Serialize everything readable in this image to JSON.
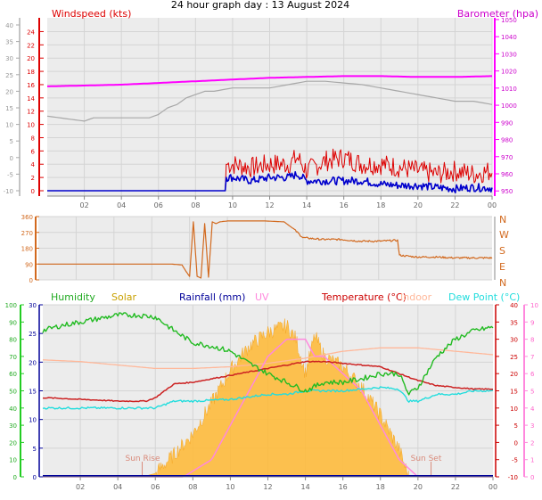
{
  "title": "24 hour graph day : 13 August 2024",
  "colors": {
    "wind": "#dd0000",
    "gust": "#0000cc",
    "baro": "#ff00ff",
    "temp_grey": "#a8a8a8",
    "dir": "#d2691e",
    "humidity": "#22bb22",
    "solar": "#ffb833",
    "rain": "#000099",
    "uv": "#ff88dd",
    "temperature": "#cc2222",
    "indoor": "#ffb89a",
    "dewpoint": "#22dddd",
    "axis": "#888888",
    "bg": "#ececec"
  },
  "chart_data": [
    {
      "type": "line",
      "labels": {
        "left": "Windspeed (kts)",
        "right": "Barometer (hpa)"
      },
      "x_ticks": [
        "02",
        "04",
        "06",
        "08",
        "10",
        "12",
        "14",
        "16",
        "18",
        "20",
        "22",
        "00"
      ],
      "x_range_hours": [
        0,
        24
      ],
      "y_left_ticks": [
        0,
        2,
        4,
        6,
        8,
        10,
        12,
        14,
        16,
        18,
        20,
        22,
        24
      ],
      "y_left_range": [
        0,
        25
      ],
      "y_right_ticks": [
        950,
        960,
        970,
        980,
        990,
        1000,
        1010,
        1020,
        1030,
        1040,
        1050
      ],
      "y_right_range": [
        947,
        1051
      ],
      "y_far_left_ticks": [
        -10,
        -5,
        0,
        5,
        10,
        15,
        20,
        25,
        30,
        35,
        40
      ],
      "series": [
        {
          "name": "Barometer (hpa)",
          "axis": "right",
          "x": [
            0,
            2,
            4,
            6,
            8,
            9,
            10,
            12,
            14,
            16,
            18,
            20,
            22,
            24
          ],
          "y": [
            1011,
            1011.5,
            1012,
            1013,
            1014,
            1014.5,
            1015,
            1016,
            1016.5,
            1017,
            1017,
            1016.5,
            1016.5,
            1017
          ]
        },
        {
          "name": "",
          "axis": "far_left",
          "x": [
            0,
            2,
            2.5,
            4,
            5.5,
            6,
            6.5,
            7,
            7.5,
            8,
            8.5,
            9,
            10,
            11,
            12,
            13,
            14,
            15,
            16,
            17,
            18,
            19,
            20,
            21,
            22,
            23,
            24
          ],
          "y": [
            12.5,
            11,
            12,
            12,
            12,
            13,
            15,
            16,
            18,
            19,
            20,
            20,
            21,
            21,
            21,
            22,
            23,
            23,
            22.5,
            22,
            21,
            20,
            19,
            18,
            17,
            17,
            16
          ]
        },
        {
          "name": "Windspeed (kts)",
          "axis": "left",
          "x": [
            0,
            9.6,
            9.65,
            10,
            11,
            12,
            13,
            13.5,
            14,
            15,
            16,
            17,
            18,
            19,
            20,
            21,
            22,
            23,
            24
          ],
          "y": [
            0,
            0,
            4,
            4,
            3.5,
            4,
            4,
            5,
            3,
            4.5,
            5,
            4,
            4,
            3.5,
            3,
            2.5,
            3,
            2.5,
            3
          ]
        },
        {
          "name": "",
          "axis": "left",
          "x": [
            0,
            9.6,
            9.65,
            10,
            11,
            12,
            13,
            13.5,
            14,
            15,
            16,
            17,
            18,
            19,
            20,
            21,
            22,
            23,
            24
          ],
          "y": [
            0,
            0,
            2,
            2,
            1.5,
            2,
            2,
            2.5,
            1.5,
            1.5,
            1.5,
            1.5,
            1,
            0.8,
            0.8,
            0.5,
            0.3,
            0.5,
            0.4
          ]
        }
      ]
    },
    {
      "type": "line",
      "x_range_hours": [
        0,
        24
      ],
      "y_ticks": [
        0,
        90,
        180,
        270,
        360
      ],
      "y_range": [
        0,
        360
      ],
      "compass_labels": [
        "N",
        "W",
        "S",
        "E",
        "N"
      ],
      "series": [
        {
          "name": "",
          "x": [
            0,
            6,
            7,
            7.6,
            7.8,
            8,
            8.2,
            8.4,
            8.6,
            8.8,
            9,
            9.2,
            9.4,
            9.6,
            10,
            11,
            12,
            13,
            13.5,
            14,
            15,
            16,
            17,
            18,
            19,
            19.1,
            20,
            21,
            22,
            23,
            24
          ],
          "y": [
            90,
            90,
            90,
            85,
            50,
            20,
            330,
            20,
            10,
            320,
            15,
            330,
            320,
            330,
            335,
            335,
            335,
            330,
            290,
            240,
            230,
            230,
            220,
            220,
            225,
            140,
            130,
            130,
            125,
            125,
            125
          ]
        }
      ]
    },
    {
      "type": "line",
      "labels": {
        "humidity": "Humidity",
        "solar": "Solar",
        "rain": "Rainfall (mm)",
        "uv": "UV",
        "temperature": "Temperature (°C)",
        "indoor": "Indoor",
        "dewpoint": "Dew Point (°C)"
      },
      "annotations": [
        "Sun Rise",
        "Sun Set"
      ],
      "x_range_hours": [
        0,
        24
      ],
      "y_green_ticks": [
        0,
        10,
        20,
        30,
        40,
        50,
        60,
        70,
        80,
        90,
        100
      ],
      "y_blue_ticks": [
        0,
        5,
        10,
        15,
        20,
        25,
        30
      ],
      "y_red_ticks": [
        -10,
        -5,
        0,
        5,
        10,
        15,
        20,
        25,
        30,
        35,
        40
      ],
      "y_pink_ticks": [
        0,
        1,
        2,
        3,
        4,
        5,
        6,
        7,
        8,
        9,
        10
      ],
      "series": [
        {
          "name": "Humidity",
          "axis": "humidity_pct",
          "x": [
            0,
            1,
            2,
            3,
            4,
            5,
            6,
            7,
            8,
            9,
            10,
            11,
            12,
            13,
            14,
            15,
            16,
            17,
            18,
            19,
            19.5,
            20,
            21,
            22,
            23,
            24
          ],
          "y": [
            85,
            88,
            90,
            92,
            94,
            94,
            93,
            85,
            78,
            76,
            73,
            66,
            60,
            55,
            50,
            55,
            55,
            57,
            60,
            60,
            48,
            52,
            70,
            80,
            85,
            87
          ]
        },
        {
          "name": "Solar",
          "axis": "solar_wm2",
          "x": [
            5.3,
            6,
            7,
            8,
            9,
            10,
            11,
            12,
            13,
            13.5,
            14,
            14.5,
            15,
            16,
            17,
            18,
            19,
            19.5
          ],
          "y": [
            0,
            20,
            130,
            250,
            430,
            620,
            760,
            840,
            880,
            800,
            600,
            820,
            700,
            640,
            520,
            360,
            160,
            0
          ]
        },
        {
          "name": "UV",
          "axis": "uv_index",
          "x": [
            0,
            7.5,
            9,
            10,
            11,
            12,
            13,
            14,
            14.5,
            15,
            16,
            17,
            18,
            19,
            19.5,
            20,
            24
          ],
          "y": [
            0,
            0,
            1,
            3,
            5,
            7,
            8,
            8,
            7,
            7,
            6,
            5,
            3,
            1,
            0.5,
            0,
            0
          ]
        },
        {
          "name": "Temperature (°C)",
          "axis": "temp_c",
          "x": [
            0,
            1,
            2,
            3,
            4,
            5,
            5.5,
            6,
            6.5,
            7,
            8,
            9,
            10,
            11,
            12,
            13,
            14,
            15,
            16,
            17,
            18,
            19,
            20,
            21,
            22,
            23,
            24
          ],
          "y": [
            13,
            12.8,
            12.5,
            12.3,
            12,
            12,
            12,
            13,
            15,
            17,
            17.5,
            18.5,
            19.5,
            20.5,
            21.5,
            22.5,
            23.5,
            23.5,
            23,
            22.5,
            22,
            20,
            18,
            16.5,
            16,
            15.5,
            15.5
          ]
        },
        {
          "name": "Indoor",
          "axis": "temp_c",
          "x": [
            0,
            2,
            4,
            6,
            8,
            10,
            12,
            14,
            16,
            18,
            20,
            22,
            24
          ],
          "y": [
            24,
            23.5,
            22.5,
            21.5,
            21.5,
            22,
            23,
            24.5,
            26.5,
            27.5,
            27.5,
            26.5,
            25.5
          ]
        },
        {
          "name": "Dew Point (°C)",
          "axis": "temp_c",
          "x": [
            0,
            2,
            4,
            5,
            6,
            7,
            8,
            10,
            12,
            13,
            14,
            15,
            16,
            18,
            19,
            19.5,
            20,
            21,
            22,
            23,
            24
          ],
          "y": [
            10,
            10,
            10,
            10,
            10,
            12,
            12,
            12.5,
            14,
            14,
            15,
            15,
            15,
            16,
            15.5,
            12,
            12,
            14,
            14,
            15,
            15
          ]
        },
        {
          "name": "Rainfall (mm)",
          "axis": "rain_mm",
          "x": [
            0,
            24
          ],
          "y": [
            0,
            0
          ]
        }
      ]
    }
  ]
}
